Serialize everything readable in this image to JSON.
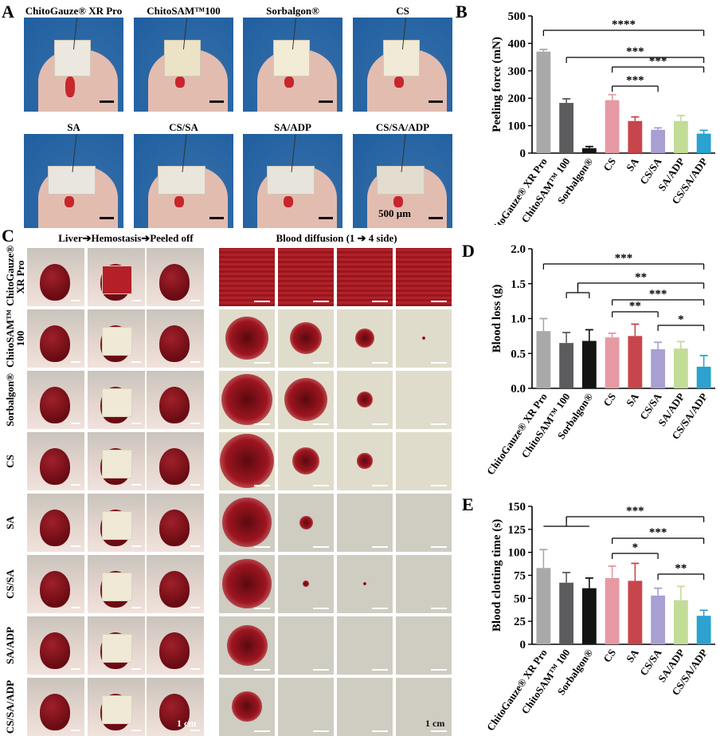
{
  "panel_a": {
    "letter": "A",
    "samples": [
      "ChitoGauze® XR Pro",
      "ChitoSAM™100",
      "Sorbalgon®",
      "CS",
      "SA",
      "CS/SA",
      "SA/ADP",
      "CS/SA/ADP"
    ],
    "scale_label": "500 μm"
  },
  "panel_c": {
    "letter": "C",
    "header_left": "Liver➔Hemostasis➔Peeled off",
    "header_right": "Blood diffusion (1 ➔ 4 side)",
    "rows": [
      "ChitoGauze® XR Pro",
      "ChitoSAM™ 100",
      "Sorbalgon®",
      "CS",
      "SA",
      "CS/SA",
      "SA/ADP",
      "CS/SA/ADP"
    ],
    "scale_left": "1 cm",
    "scale_right": "1 cm"
  },
  "chart_data": [
    {
      "panel": "B",
      "type": "bar",
      "ylabel": "Peeling force (mN)",
      "ylim": [
        0,
        500
      ],
      "yticks": [
        "0",
        "100",
        "200",
        "300",
        "400",
        "500"
      ],
      "categories": [
        "ChitoGauze® XR Pro",
        "ChitoSAM™ 100",
        "Sorbalgon®",
        "CS",
        "SA",
        "CS/SA",
        "SA/ADP",
        "CS/SA/ADP"
      ],
      "values": [
        370,
        183,
        18,
        193,
        117,
        85,
        117,
        71
      ],
      "errors": [
        8,
        15,
        6,
        20,
        15,
        7,
        20,
        12
      ],
      "colors": [
        "#a9a9ab",
        "#5c5c5e",
        "#141414",
        "#e59aa3",
        "#c8454c",
        "#a99fd2",
        "#c3dc97",
        "#2ba2cf"
      ],
      "significance": [
        {
          "from": 0,
          "to": 7,
          "label": "****"
        },
        {
          "from": 1,
          "to": 7,
          "label": "***"
        },
        {
          "from": 3,
          "to": 7,
          "label": "***"
        },
        {
          "from": 3,
          "to": 5,
          "label": "***"
        }
      ]
    },
    {
      "panel": "D",
      "type": "bar",
      "ylabel": "Blood loss (g)",
      "ylim": [
        0,
        2.0
      ],
      "yticks": [
        "0.0",
        "0.5",
        "1.0",
        "1.5",
        "2.0"
      ],
      "categories": [
        "ChitoGauze® XR Pro",
        "ChitoSAM™ 100",
        "Sorbalgon®",
        "CS",
        "SA",
        "CS/SA",
        "SA/ADP",
        "CS/SA/ADP"
      ],
      "values": [
        0.82,
        0.65,
        0.68,
        0.73,
        0.75,
        0.56,
        0.57,
        0.31
      ],
      "errors": [
        0.18,
        0.15,
        0.16,
        0.06,
        0.17,
        0.1,
        0.1,
        0.16
      ],
      "colors": [
        "#a9a9ab",
        "#5c5c5e",
        "#141414",
        "#e59aa3",
        "#c8454c",
        "#a99fd2",
        "#c3dc97",
        "#2ba2cf"
      ],
      "significance": [
        {
          "from": 0,
          "to": 7,
          "label": "***"
        },
        {
          "from": 1.5,
          "to": 7,
          "label": "**",
          "bracket_from": [
            1,
            2
          ]
        },
        {
          "from": 3,
          "to": 7,
          "label": "***"
        },
        {
          "from": 3,
          "to": 5,
          "label": "**"
        },
        {
          "from": 5,
          "to": 7,
          "label": "*"
        }
      ]
    },
    {
      "panel": "E",
      "type": "bar",
      "ylabel": "Blood clotting time (s)",
      "ylim": [
        0,
        150
      ],
      "yticks": [
        "0",
        "25",
        "50",
        "75",
        "100",
        "125",
        "150"
      ],
      "categories": [
        "ChitoGauze® XR Pro",
        "ChitoSAM™ 100",
        "Sorbalgon®",
        "CS",
        "SA",
        "CS/SA",
        "SA/ADP",
        "CS/SA/ADP"
      ],
      "values": [
        83,
        67,
        61,
        72,
        69,
        53,
        48,
        31
      ],
      "errors": [
        20,
        11,
        11,
        13,
        19,
        8,
        15,
        6
      ],
      "colors": [
        "#a9a9ab",
        "#5c5c5e",
        "#141414",
        "#e59aa3",
        "#c8454c",
        "#a99fd2",
        "#c3dc97",
        "#2ba2cf"
      ],
      "significance": [
        {
          "from": 1,
          "to": 7,
          "label": "***",
          "bracket_from": [
            0,
            2
          ]
        },
        {
          "from": 3,
          "to": 7,
          "label": "***"
        },
        {
          "from": 3,
          "to": 5,
          "label": "*"
        },
        {
          "from": 5,
          "to": 7,
          "label": "**"
        }
      ]
    }
  ]
}
